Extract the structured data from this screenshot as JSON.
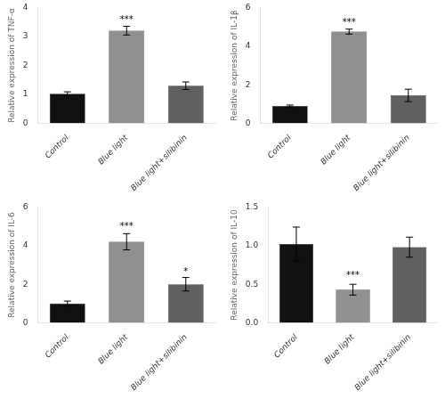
{
  "chart_data": [
    {
      "type": "bar",
      "ylabel": "Relative expression of TNF-α",
      "categories": [
        "Control",
        "Blue light",
        "Blue light+silibinin"
      ],
      "values": [
        1.02,
        3.2,
        1.3
      ],
      "errors": [
        0.07,
        0.15,
        0.13
      ],
      "colors": [
        "#111111",
        "#909090",
        "#606060"
      ],
      "ylim": [
        0,
        4
      ],
      "yticks": [
        0,
        1,
        2,
        3,
        4
      ],
      "grid": false,
      "annotations": [
        {
          "text": "***",
          "x": "Blue light",
          "y": 3.42
        }
      ]
    },
    {
      "type": "bar",
      "ylabel": "Relative expression of IL-1β",
      "categories": [
        "Control",
        "Blue light",
        "Blue light+silibinin"
      ],
      "values": [
        0.9,
        4.75,
        1.45
      ],
      "errors": [
        0.05,
        0.13,
        0.32
      ],
      "colors": [
        "#111111",
        "#909090",
        "#606060"
      ],
      "ylim": [
        0,
        6
      ],
      "yticks": [
        0,
        2,
        4,
        6
      ],
      "grid": false,
      "annotations": [
        {
          "text": "***",
          "x": "Blue light",
          "y": 5.0
        }
      ]
    },
    {
      "type": "bar",
      "ylabel": "Relative expression of IL-6",
      "categories": [
        "Control",
        "Blue light",
        "Blue light+silibinin"
      ],
      "values": [
        1.0,
        4.2,
        2.0
      ],
      "errors": [
        0.13,
        0.42,
        0.35
      ],
      "colors": [
        "#111111",
        "#909090",
        "#606060"
      ],
      "ylim": [
        0,
        6
      ],
      "yticks": [
        0,
        2,
        4,
        6
      ],
      "grid": false,
      "annotations": [
        {
          "text": "***",
          "x": "Blue light",
          "y": 4.75
        },
        {
          "text": "*",
          "x": "Blue light+silibinin",
          "y": 2.42
        }
      ]
    },
    {
      "type": "bar",
      "ylabel": "Relative expression of IL-10",
      "categories": [
        "Control",
        "Blue light",
        "Blue light+silibinin"
      ],
      "values": [
        1.02,
        0.43,
        0.98
      ],
      "errors": [
        0.22,
        0.07,
        0.13
      ],
      "colors": [
        "#111111",
        "#909090",
        "#606060"
      ],
      "ylim": [
        0,
        1.5
      ],
      "yticks": [
        {
          "value": 0,
          "label": "0.0"
        },
        0.5,
        {
          "value": 1,
          "label": "1.0"
        },
        1.5
      ],
      "grid": false,
      "annotations": [
        {
          "text": "***",
          "x": "Blue light",
          "y": 0.55
        }
      ]
    }
  ]
}
